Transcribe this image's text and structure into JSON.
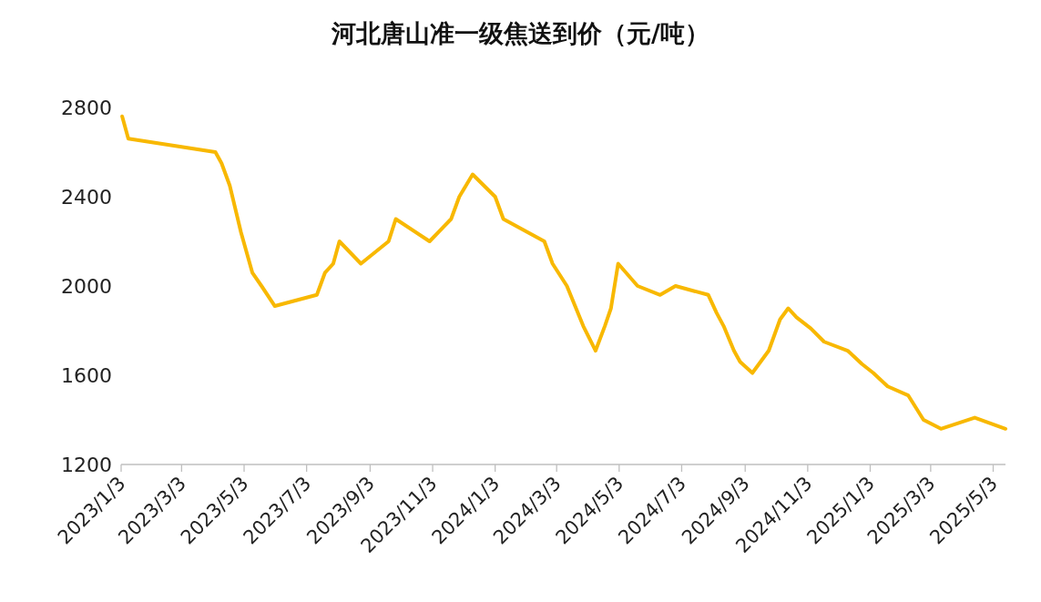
{
  "chart_data": {
    "type": "line",
    "title": "河北唐山准一级焦送到价（元/吨）",
    "x": [
      "2023-01-04",
      "2023-01-10",
      "2023-04-05",
      "2023-04-11",
      "2023-04-19",
      "2023-04-30",
      "2023-05-11",
      "2023-05-20",
      "2023-06-02",
      "2023-07-13",
      "2023-07-21",
      "2023-07-29",
      "2023-08-04",
      "2023-08-25",
      "2023-09-21",
      "2023-09-28",
      "2023-10-31",
      "2023-11-21",
      "2023-11-29",
      "2023-12-12",
      "2024-01-03",
      "2024-01-11",
      "2024-02-20",
      "2024-02-28",
      "2024-03-13",
      "2024-03-29",
      "2024-04-10",
      "2024-04-19",
      "2024-04-25",
      "2024-05-02",
      "2024-05-21",
      "2024-06-12",
      "2024-06-27",
      "2024-07-29",
      "2024-08-06",
      "2024-08-13",
      "2024-08-23",
      "2024-08-29",
      "2024-09-10",
      "2024-09-26",
      "2024-10-07",
      "2024-10-15",
      "2024-10-23",
      "2024-11-06",
      "2024-11-19",
      "2024-12-12",
      "2024-12-26",
      "2025-01-06",
      "2025-01-20",
      "2025-02-09",
      "2025-02-24",
      "2025-03-13",
      "2025-04-15",
      "2025-05-15"
    ],
    "series": [
      {
        "color": "#f8b800",
        "values": [
          2760,
          2660,
          2600,
          2550,
          2450,
          2240,
          2060,
          2000,
          1910,
          1960,
          2060,
          2100,
          2200,
          2100,
          2200,
          2300,
          2200,
          2300,
          2400,
          2500,
          2400,
          2300,
          2200,
          2100,
          2000,
          1820,
          1710,
          1820,
          1900,
          2100,
          2000,
          1960,
          2000,
          1960,
          1880,
          1820,
          1710,
          1660,
          1610,
          1710,
          1850,
          1900,
          1860,
          1810,
          1750,
          1710,
          1650,
          1610,
          1550,
          1510,
          1400,
          1360,
          1410,
          1360
        ]
      }
    ],
    "xlim": [
      "2023-01-03",
      "2025-05-15"
    ],
    "xticks": [
      {
        "value": "2023-01-03",
        "label": "2023/1/3"
      },
      {
        "value": "2023-03-03",
        "label": "2023/3/3"
      },
      {
        "value": "2023-05-03",
        "label": "2023/5/3"
      },
      {
        "value": "2023-07-03",
        "label": "2023/7/3"
      },
      {
        "value": "2023-09-03",
        "label": "2023/9/3"
      },
      {
        "value": "2023-11-03",
        "label": "2023/11/3"
      },
      {
        "value": "2024-01-03",
        "label": "2024/1/3"
      },
      {
        "value": "2024-03-03",
        "label": "2024/3/3"
      },
      {
        "value": "2024-05-03",
        "label": "2024/5/3"
      },
      {
        "value": "2024-07-03",
        "label": "2024/7/3"
      },
      {
        "value": "2024-09-03",
        "label": "2024/9/3"
      },
      {
        "value": "2024-11-03",
        "label": "2024/11/3"
      },
      {
        "value": "2025-01-03",
        "label": "2025/1/3"
      },
      {
        "value": "2025-03-03",
        "label": "2025/3/3"
      },
      {
        "value": "2025-05-03",
        "label": "2025/5/3"
      }
    ],
    "ylim": [
      1200,
      2800
    ],
    "yticks": [
      1200,
      1600,
      2000,
      2400,
      2800
    ],
    "grid": false,
    "marker": "none",
    "line_style": "solid"
  }
}
